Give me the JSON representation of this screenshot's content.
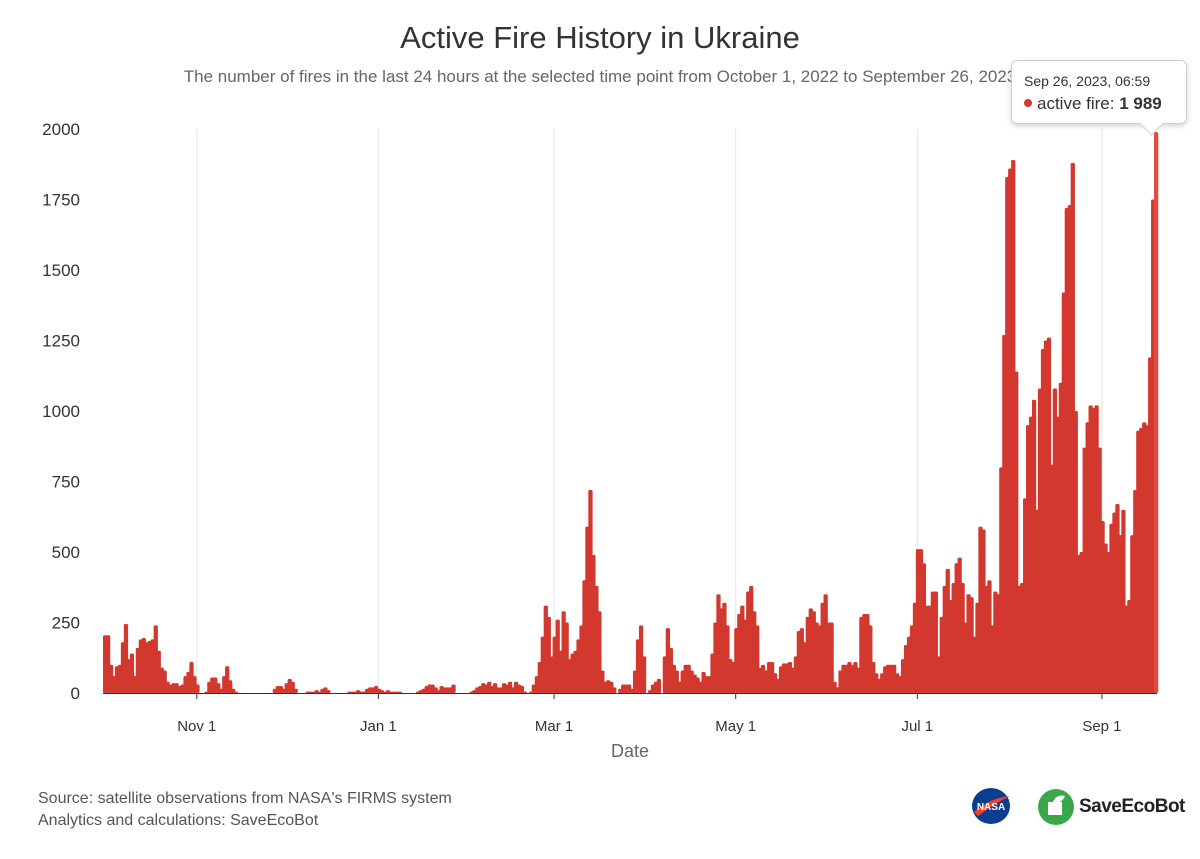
{
  "chart_data": {
    "type": "bar",
    "title": "Active Fire History in Ukraine",
    "subtitle": "The number of fires in the last 24 hours at the selected time point from October 1, 2022 to September 26, 2023",
    "xlabel": "Date",
    "ylabel": "",
    "ylim": [
      0,
      2000
    ],
    "yticks": [
      "0",
      "250",
      "500",
      "750",
      "1000",
      "1250",
      "1500",
      "1750",
      "2000"
    ],
    "xticks": [
      {
        "label": "Nov 1",
        "day": 31
      },
      {
        "label": "Jan 1",
        "day": 92
      },
      {
        "label": "Mar 1",
        "day": 151
      },
      {
        "label": "May 1",
        "day": 212
      },
      {
        "label": "Jul 1",
        "day": 273
      },
      {
        "label": "Sep 1",
        "day": 335
      }
    ],
    "series": [
      {
        "name": "active fire",
        "color": "#d3382f"
      }
    ],
    "start_date": "2022-10-01",
    "values": [
      205,
      205,
      100,
      60,
      95,
      100,
      180,
      245,
      120,
      140,
      60,
      160,
      190,
      195,
      180,
      185,
      190,
      240,
      150,
      90,
      80,
      40,
      30,
      35,
      35,
      25,
      30,
      60,
      75,
      110,
      60,
      30,
      0,
      0,
      5,
      40,
      55,
      55,
      35,
      15,
      60,
      95,
      45,
      15,
      5,
      0,
      0,
      0,
      0,
      0,
      0,
      0,
      0,
      0,
      0,
      0,
      0,
      15,
      25,
      25,
      15,
      35,
      50,
      40,
      15,
      0,
      0,
      0,
      5,
      5,
      5,
      10,
      5,
      15,
      20,
      10,
      0,
      0,
      0,
      0,
      0,
      0,
      5,
      5,
      5,
      10,
      5,
      5,
      15,
      20,
      20,
      25,
      15,
      10,
      5,
      10,
      5,
      5,
      5,
      5,
      0,
      0,
      0,
      0,
      0,
      5,
      10,
      15,
      25,
      30,
      30,
      20,
      10,
      25,
      20,
      20,
      20,
      30,
      0,
      0,
      0,
      0,
      0,
      5,
      10,
      20,
      25,
      35,
      30,
      40,
      25,
      35,
      20,
      20,
      35,
      30,
      40,
      20,
      40,
      30,
      25,
      5,
      0,
      5,
      30,
      60,
      110,
      200,
      310,
      270,
      130,
      200,
      260,
      150,
      290,
      250,
      120,
      140,
      150,
      190,
      240,
      400,
      590,
      720,
      490,
      380,
      290,
      80,
      40,
      45,
      40,
      20,
      0,
      15,
      30,
      30,
      30,
      15,
      80,
      190,
      240,
      130,
      0,
      10,
      30,
      40,
      50,
      0,
      130,
      230,
      160,
      100,
      80,
      40,
      80,
      100,
      100,
      80,
      65,
      55,
      40,
      75,
      60,
      60,
      140,
      250,
      350,
      300,
      320,
      240,
      120,
      110,
      230,
      280,
      310,
      260,
      360,
      380,
      290,
      240,
      90,
      100,
      80,
      110,
      110,
      70,
      50,
      95,
      105,
      105,
      110,
      90,
      130,
      220,
      230,
      180,
      270,
      300,
      290,
      250,
      240,
      320,
      350,
      250,
      250,
      40,
      20,
      80,
      100,
      100,
      110,
      100,
      110,
      90,
      270,
      280,
      280,
      240,
      110,
      70,
      50,
      70,
      95,
      100,
      100,
      100,
      70,
      60,
      120,
      170,
      200,
      240,
      320,
      510,
      510,
      460,
      310,
      310,
      360,
      360,
      130,
      270,
      380,
      440,
      330,
      390,
      460,
      480,
      390,
      250,
      350,
      340,
      200,
      320,
      590,
      580,
      380,
      400,
      240,
      360,
      350,
      800,
      1270,
      1830,
      1860,
      1890,
      1140,
      380,
      390,
      690,
      950,
      980,
      1040,
      650,
      1080,
      1220,
      1250,
      1260,
      810,
      1080,
      980,
      1100,
      1420,
      1720,
      1730,
      1880,
      1000,
      490,
      500,
      870,
      960,
      1020,
      1010,
      1020,
      870,
      610,
      530,
      500,
      600,
      640,
      670,
      560,
      650,
      310,
      330,
      560,
      720,
      930,
      940,
      960,
      950,
      1190,
      1750,
      1989
    ]
  },
  "tooltip": {
    "date": "Sep 26, 2023, 06:59",
    "series_label": "active fire:",
    "value": "1 989"
  },
  "footer": {
    "source": "Source: satellite observations from NASA's FIRMS system",
    "analytics": "Analytics and calculations: SaveEcoBot"
  },
  "logos": {
    "nasa": "NASA",
    "saveecobot": "SaveEcoBot"
  }
}
